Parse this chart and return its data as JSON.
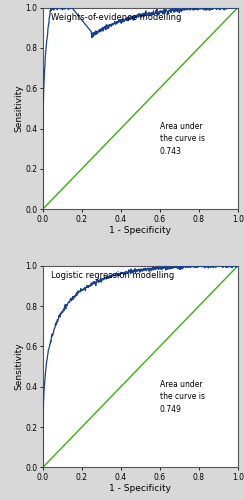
{
  "title1": "Weights-of-evidence modelling",
  "title2": "Logistic regression modelling",
  "annotation1": "Area under\nthe curve is\n0.743",
  "annotation2": "Area under\nthe curve is\n0.749",
  "xlabel": "1 - Specificity",
  "ylabel": "Sensitivity",
  "roc_color": "#1a3f8f",
  "diag_color": "#3ab010",
  "bg_color": "#ffffff",
  "fig_bg": "#d8d8d8",
  "tick_labels": [
    "0.0",
    "0.2",
    "0.4",
    "0.6",
    "0.8",
    "1.0"
  ],
  "tick_vals": [
    0.0,
    0.2,
    0.4,
    0.6,
    0.8,
    1.0
  ],
  "title_fontsize": 6.0,
  "annot_fontsize": 5.5,
  "label_fontsize": 6.5,
  "tick_fontsize": 5.5
}
